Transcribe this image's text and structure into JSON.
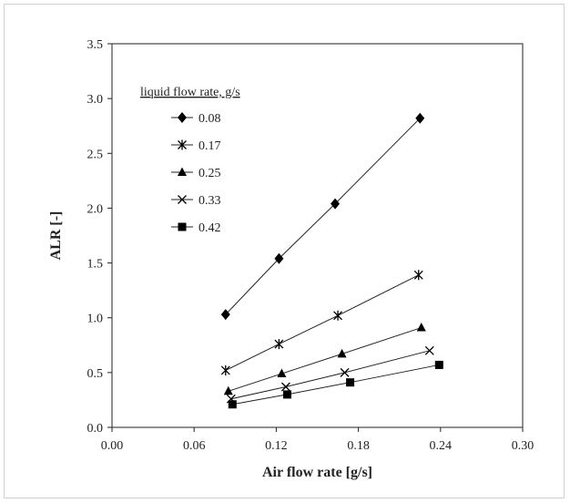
{
  "chart_data": {
    "type": "scatter",
    "xlabel": "Air flow rate [g/s]",
    "ylabel": "ALR [-]",
    "xlim": [
      0.0,
      0.3
    ],
    "ylim": [
      0.0,
      3.5
    ],
    "xticks": [
      "0.00",
      "0.06",
      "0.12",
      "0.18",
      "0.24",
      "0.30"
    ],
    "yticks": [
      "0.0",
      "0.5",
      "1.0",
      "1.5",
      "2.0",
      "2.5",
      "3.0",
      "3.5"
    ],
    "grid": false,
    "legend": {
      "title": "liquid flow rate, g/s",
      "placement": "top-left"
    },
    "series": [
      {
        "name": "0.08",
        "marker": "diamond",
        "x": [
          0.083,
          0.122,
          0.163,
          0.225
        ],
        "y": [
          1.03,
          1.54,
          2.04,
          2.82
        ]
      },
      {
        "name": "0.17",
        "marker": "asterisk",
        "x": [
          0.083,
          0.122,
          0.165,
          0.224
        ],
        "y": [
          0.52,
          0.76,
          1.02,
          1.39
        ]
      },
      {
        "name": "0.25",
        "marker": "triangle",
        "x": [
          0.085,
          0.124,
          0.168,
          0.226
        ],
        "y": [
          0.33,
          0.49,
          0.67,
          0.91
        ]
      },
      {
        "name": "0.33",
        "marker": "cross",
        "x": [
          0.087,
          0.127,
          0.17,
          0.232
        ],
        "y": [
          0.26,
          0.37,
          0.5,
          0.7
        ]
      },
      {
        "name": "0.42",
        "marker": "square",
        "x": [
          0.088,
          0.128,
          0.174,
          0.239
        ],
        "y": [
          0.21,
          0.3,
          0.41,
          0.57
        ]
      }
    ]
  }
}
